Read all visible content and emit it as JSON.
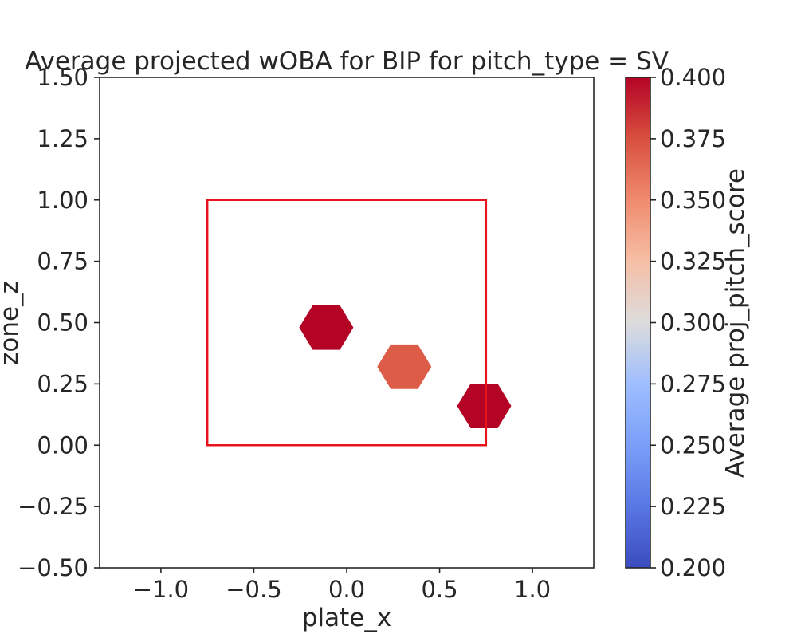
{
  "chart_data": {
    "type": "heatmap",
    "subtype": "hexbin",
    "title": "Average projected wOBA for BIP for pitch_type = SV",
    "xlabel": "plate_x",
    "ylabel": "zone_z",
    "xlim": [
      -1.33,
      1.33
    ],
    "ylim": [
      -0.5,
      1.5
    ],
    "x_ticks": [
      -1.0,
      -0.5,
      0.0,
      0.5,
      1.0
    ],
    "x_tick_labels": [
      "−1.0",
      "−0.5",
      "0.0",
      "0.5",
      "1.0"
    ],
    "y_ticks": [
      -0.5,
      -0.25,
      0.0,
      0.25,
      0.5,
      0.75,
      1.0,
      1.25,
      1.5
    ],
    "y_tick_labels": [
      "−0.50",
      "−0.25",
      "0.00",
      "0.25",
      "0.50",
      "0.75",
      "1.00",
      "1.25",
      "1.50"
    ],
    "grid": false,
    "strike_zone": {
      "x0": -0.75,
      "x1": 0.75,
      "y0": 0.0,
      "y1": 1.0,
      "color": "#e8141c"
    },
    "hexbins": [
      {
        "x": -0.11,
        "y": 0.48,
        "value": 0.4
      },
      {
        "x": 0.31,
        "y": 0.32,
        "value": 0.37
      },
      {
        "x": 0.74,
        "y": 0.16,
        "value": 0.4
      }
    ],
    "colorbar": {
      "label": "Average proj_pitch_score",
      "colormap": "coolwarm",
      "range": [
        0.2,
        0.4
      ],
      "ticks": [
        0.2,
        0.225,
        0.25,
        0.275,
        0.3,
        0.325,
        0.35,
        0.375,
        0.4
      ],
      "tick_labels": [
        "0.200",
        "0.225",
        "0.250",
        "0.275",
        "0.300",
        "0.325",
        "0.350",
        "0.375",
        "0.400"
      ]
    }
  }
}
